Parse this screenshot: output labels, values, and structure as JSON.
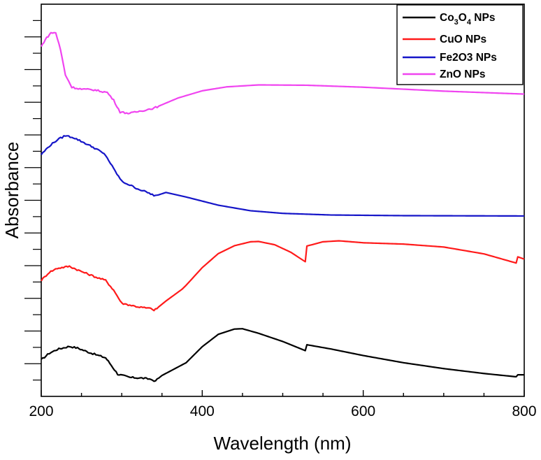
{
  "chart_data": {
    "type": "line",
    "title": "",
    "xlabel": "Wavelength (nm)",
    "ylabel": "Absorbance",
    "xlim": [
      200,
      800
    ],
    "ylim": [
      0,
      12
    ],
    "x_ticks": [
      "200",
      "400",
      "600",
      "800"
    ],
    "y_tick_labels": false,
    "legend_position": "top-right",
    "series": [
      {
        "name": "Co3O4 NPs",
        "legend_base": "Co",
        "legend_sub1": "3",
        "legend_mid": "O",
        "legend_sub2": "4",
        "legend_tail": " NPs",
        "color": "#000000",
        "points": [
          [
            200,
            1.12
          ],
          [
            210,
            1.32
          ],
          [
            220,
            1.44
          ],
          [
            235,
            1.53
          ],
          [
            245,
            1.48
          ],
          [
            260,
            1.34
          ],
          [
            280,
            1.18
          ],
          [
            285,
            1.02
          ],
          [
            295,
            0.68
          ],
          [
            310,
            0.58
          ],
          [
            325,
            0.56
          ],
          [
            338,
            0.52
          ],
          [
            340,
            0.44
          ],
          [
            350,
            0.64
          ],
          [
            370,
            0.9
          ],
          [
            380,
            1.03
          ],
          [
            400,
            1.52
          ],
          [
            420,
            1.9
          ],
          [
            440,
            2.06
          ],
          [
            450,
            2.07
          ],
          [
            470,
            1.93
          ],
          [
            500,
            1.68
          ],
          [
            528,
            1.4
          ],
          [
            530,
            1.58
          ],
          [
            560,
            1.45
          ],
          [
            600,
            1.25
          ],
          [
            650,
            1.03
          ],
          [
            700,
            0.85
          ],
          [
            750,
            0.7
          ],
          [
            790,
            0.6
          ],
          [
            792,
            0.66
          ],
          [
            800,
            0.66
          ]
        ]
      },
      {
        "name": "CuO NPs",
        "legend_text": "CuO NPs",
        "color": "#ff1a1a",
        "points": [
          [
            200,
            3.55
          ],
          [
            210,
            3.8
          ],
          [
            220,
            3.92
          ],
          [
            235,
            3.98
          ],
          [
            250,
            3.82
          ],
          [
            270,
            3.63
          ],
          [
            280,
            3.55
          ],
          [
            290,
            3.25
          ],
          [
            300,
            2.85
          ],
          [
            320,
            2.74
          ],
          [
            338,
            2.68
          ],
          [
            340,
            2.62
          ],
          [
            355,
            2.92
          ],
          [
            375,
            3.28
          ],
          [
            380,
            3.4
          ],
          [
            400,
            3.94
          ],
          [
            420,
            4.37
          ],
          [
            440,
            4.61
          ],
          [
            460,
            4.73
          ],
          [
            470,
            4.74
          ],
          [
            490,
            4.64
          ],
          [
            510,
            4.41
          ],
          [
            528,
            4.12
          ],
          [
            530,
            4.6
          ],
          [
            550,
            4.73
          ],
          [
            570,
            4.76
          ],
          [
            600,
            4.7
          ],
          [
            650,
            4.66
          ],
          [
            700,
            4.57
          ],
          [
            750,
            4.36
          ],
          [
            790,
            4.08
          ],
          [
            792,
            4.27
          ],
          [
            800,
            4.2
          ]
        ]
      },
      {
        "name": "Fe2O3 NPs",
        "legend_text": "Fe2O3 NPs",
        "color": "#1515c8",
        "points": [
          [
            200,
            7.4
          ],
          [
            210,
            7.66
          ],
          [
            220,
            7.85
          ],
          [
            230,
            7.98
          ],
          [
            240,
            7.92
          ],
          [
            255,
            7.74
          ],
          [
            270,
            7.55
          ],
          [
            280,
            7.38
          ],
          [
            290,
            6.96
          ],
          [
            300,
            6.58
          ],
          [
            320,
            6.35
          ],
          [
            338,
            6.18
          ],
          [
            340,
            6.12
          ],
          [
            355,
            6.24
          ],
          [
            380,
            6.1
          ],
          [
            420,
            5.85
          ],
          [
            460,
            5.68
          ],
          [
            500,
            5.6
          ],
          [
            560,
            5.55
          ],
          [
            650,
            5.53
          ],
          [
            800,
            5.52
          ]
        ]
      },
      {
        "name": "ZnO NPs",
        "legend_text": "ZnO NPs",
        "color": "#f044f0",
        "points": [
          [
            200,
            10.7
          ],
          [
            205,
            10.92
          ],
          [
            212,
            11.12
          ],
          [
            218,
            11.13
          ],
          [
            224,
            10.6
          ],
          [
            230,
            9.84
          ],
          [
            238,
            9.46
          ],
          [
            250,
            9.4
          ],
          [
            265,
            9.38
          ],
          [
            282,
            9.3
          ],
          [
            290,
            9.06
          ],
          [
            298,
            8.7
          ],
          [
            310,
            8.66
          ],
          [
            340,
            8.82
          ],
          [
            370,
            9.13
          ],
          [
            400,
            9.35
          ],
          [
            430,
            9.47
          ],
          [
            470,
            9.53
          ],
          [
            530,
            9.52
          ],
          [
            600,
            9.46
          ],
          [
            700,
            9.34
          ],
          [
            800,
            9.25
          ]
        ]
      }
    ]
  }
}
